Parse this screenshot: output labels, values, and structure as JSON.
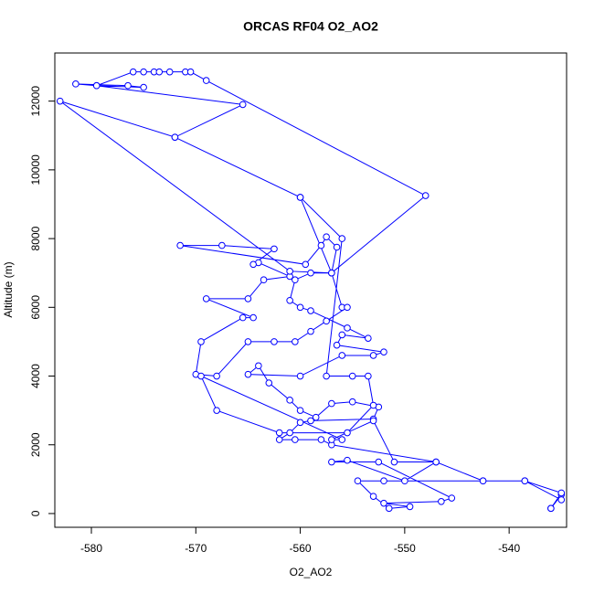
{
  "chart_data": {
    "type": "line",
    "title": "ORCAS RF04 O2_AO2",
    "x_label": "O2_AO2",
    "y_label": "Altitude (m)",
    "color": "#0000ff",
    "markers": true,
    "grid": false,
    "xlim": [
      -583.5,
      -534.5
    ],
    "ylim": [
      -400,
      13400
    ],
    "xticks": [
      -580,
      -570,
      -560,
      -550,
      -540
    ],
    "yticks": [
      0,
      2000,
      4000,
      6000,
      8000,
      10000,
      12000
    ],
    "x": [
      -536,
      -535,
      -535,
      -538.5,
      -542.5,
      -552,
      -554.5,
      -553,
      -551.5,
      -549.5,
      -552,
      -546.5,
      -545.5,
      -552.5,
      -557,
      -555.5,
      -550,
      -547,
      -557,
      -558,
      -560.5,
      -562,
      -561,
      -560,
      -559,
      -553,
      -552.5,
      -555,
      -557,
      -558.5,
      -560,
      -561,
      -563,
      -564,
      -565,
      -560,
      -556,
      -553,
      -552,
      -556.5,
      -556,
      -553.5,
      -555.5,
      -559,
      -560,
      -561,
      -560.5,
      -559,
      -557,
      -556,
      -555.5,
      -557.5,
      -559,
      -560.5,
      -562.5,
      -565,
      -568,
      -570,
      -569.5,
      -565.5,
      -564.5,
      -569,
      -565,
      -563.5,
      -561,
      -564,
      -564.5,
      -562.5,
      -567.5,
      -571.5,
      -559.5,
      -558,
      -557.5,
      -556.5,
      -557,
      -561,
      -583,
      -572,
      -565.5,
      -579.5,
      -581.5,
      -576.5,
      -575,
      -579.5,
      -576,
      -575,
      -574,
      -573.5,
      -572.5,
      -571,
      -570.5,
      -569,
      -548,
      -557,
      -560,
      -572,
      -560,
      -556,
      -557.5,
      -555,
      -553.5,
      -553,
      -555.5,
      -562,
      -568,
      -569.5,
      -556,
      -557,
      -553,
      -551,
      -547,
      -542.5,
      -538.5,
      -535,
      -536
    ],
    "values": [
      150,
      550,
      400,
      950,
      950,
      950,
      950,
      500,
      150,
      200,
      300,
      350,
      450,
      1500,
      1500,
      1550,
      950,
      1500,
      2000,
      2150,
      2150,
      2150,
      2350,
      2650,
      2700,
      2750,
      3100,
      3250,
      3200,
      2800,
      3000,
      3300,
      3800,
      4300,
      4050,
      4000,
      4600,
      4600,
      4700,
      4900,
      5200,
      5100,
      5400,
      5900,
      6000,
      6200,
      6800,
      7000,
      7000,
      6000,
      6000,
      5600,
      5300,
      5000,
      5000,
      5000,
      4000,
      4050,
      5000,
      5700,
      5700,
      6250,
      6250,
      6800,
      6900,
      7300,
      7250,
      7700,
      7800,
      7800,
      7250,
      7800,
      8050,
      7750,
      7000,
      7050,
      12000,
      10950,
      11900,
      12450,
      12500,
      12450,
      12400,
      12450,
      12850,
      12850,
      12850,
      12850,
      12850,
      12850,
      12850,
      12600,
      9250,
      7000,
      9200,
      10950,
      9200,
      8000,
      4000,
      4000,
      4000,
      3150,
      2350,
      2350,
      3000,
      4000,
      2150,
      2150,
      2700,
      1500,
      1500,
      950,
      950,
      600,
      150
    ]
  }
}
